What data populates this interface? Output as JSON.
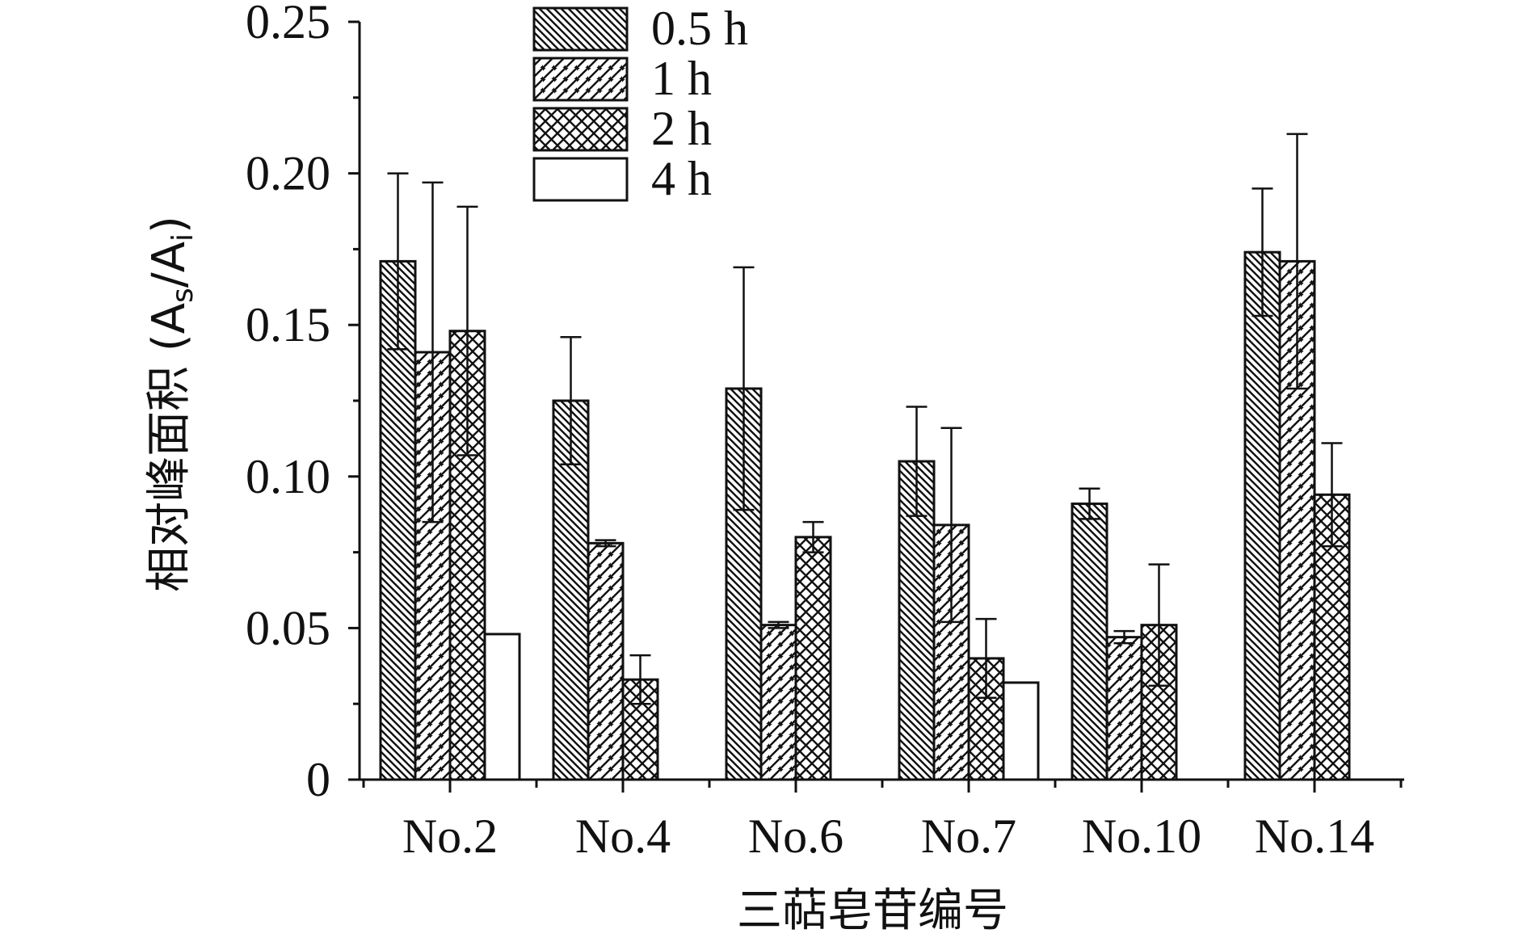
{
  "chart_data": {
    "type": "bar",
    "title": "",
    "xlabel": "三萜皂苷编号",
    "ylabel": "相对峰面积 (A",
    "ylabel_sub1": "s",
    "ylabel_mid": "/A",
    "ylabel_sub2": "i",
    "ylabel_end": ")",
    "ylim": [
      0,
      0.25
    ],
    "yticks": [
      {
        "value": 0,
        "label": "0"
      },
      {
        "value": 0.05,
        "label": "0.05"
      },
      {
        "value": 0.1,
        "label": "0.10"
      },
      {
        "value": 0.15,
        "label": "0.15"
      },
      {
        "value": 0.2,
        "label": "0.20"
      },
      {
        "value": 0.25,
        "label": "0.25"
      }
    ],
    "categories": [
      "No.2",
      "No.4",
      "No.6",
      "No.7",
      "No.10",
      "No.14"
    ],
    "legend_position": "top-center",
    "series": [
      {
        "name": "0.5 h",
        "pattern": "diag-right",
        "values": [
          0.171,
          0.125,
          0.129,
          0.105,
          0.091,
          0.174
        ],
        "errors": [
          0.029,
          0.021,
          0.04,
          0.018,
          0.005,
          0.021
        ]
      },
      {
        "name": "1 h",
        "pattern": "diag-left",
        "values": [
          0.141,
          0.078,
          0.051,
          0.084,
          0.047,
          0.171
        ],
        "errors": [
          0.056,
          0.001,
          0.001,
          0.032,
          0.002,
          0.042
        ]
      },
      {
        "name": "2 h",
        "pattern": "crosshatch",
        "values": [
          0.148,
          0.033,
          0.08,
          0.04,
          0.051,
          0.094
        ],
        "errors": [
          0.041,
          0.008,
          0.005,
          0.013,
          0.02,
          0.017
        ]
      },
      {
        "name": "4 h",
        "pattern": "none",
        "values": [
          0.048,
          null,
          null,
          0.032,
          null,
          null
        ],
        "errors": [
          0,
          0,
          0,
          0,
          0,
          0
        ]
      }
    ]
  }
}
